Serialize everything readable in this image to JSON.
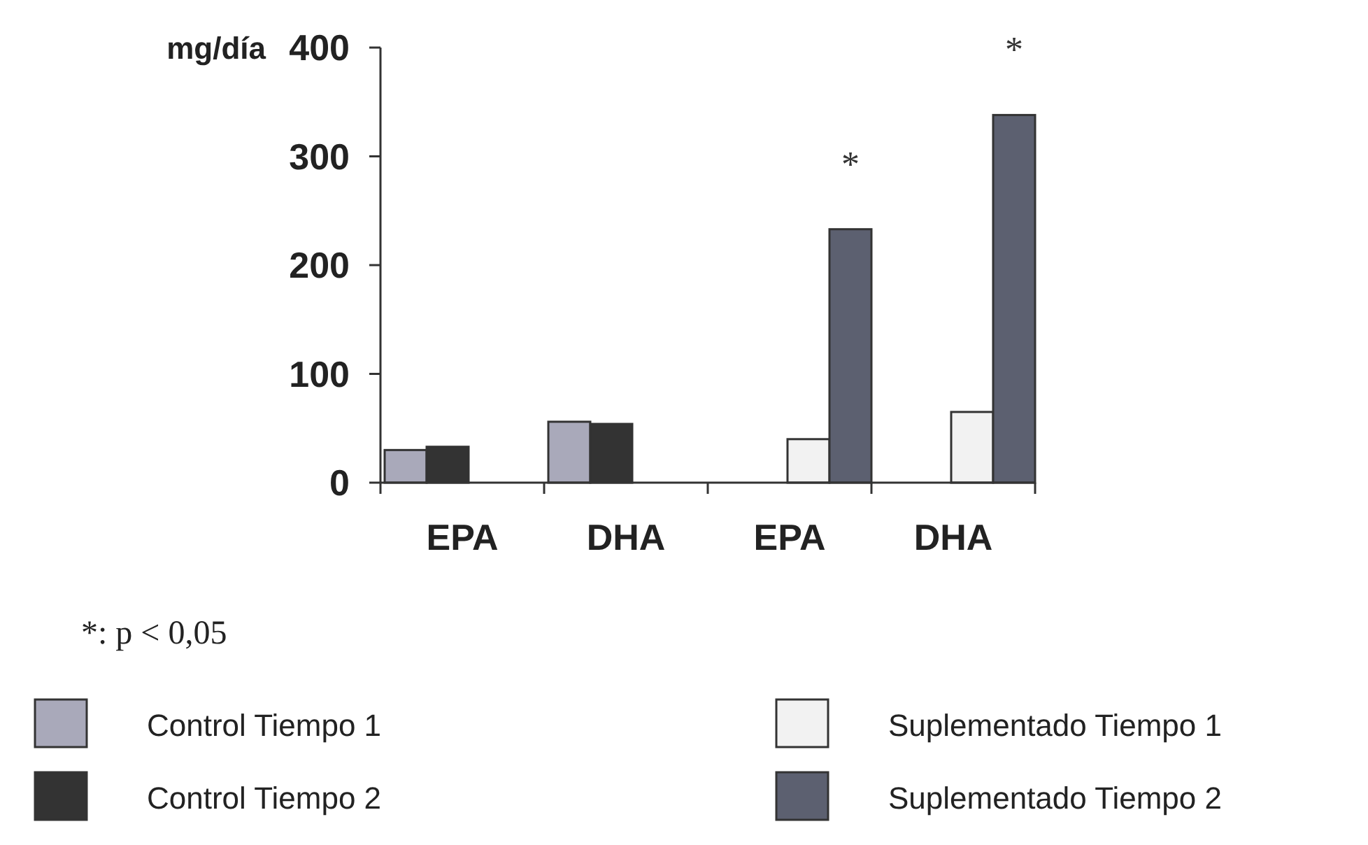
{
  "chart_data": {
    "type": "bar",
    "ylabel": "mg/día",
    "categories": [
      "EPA",
      "DHA",
      "EPA",
      "DHA"
    ],
    "ylim": [
      0,
      400
    ],
    "yticks": [
      0,
      100,
      200,
      300,
      400
    ],
    "grid": false,
    "legend": "bottom",
    "annotations": [
      "*: p < 0,05"
    ],
    "series": [
      {
        "name": "Control Tiempo 1",
        "color": "#a9a9ba",
        "values": [
          30,
          56,
          null,
          null
        ]
      },
      {
        "name": "Control Tiempo 2",
        "color": "#333333",
        "values": [
          33,
          54,
          null,
          null
        ]
      },
      {
        "name": "Suplementado Tiempo 1",
        "color": "#f2f2f2",
        "values": [
          null,
          null,
          40,
          65
        ]
      },
      {
        "name": "Suplementado Tiempo 2",
        "color": "#5c6070",
        "values": [
          null,
          null,
          233,
          338
        ],
        "value_labels": [
          null,
          null,
          "*",
          "*"
        ]
      }
    ]
  }
}
